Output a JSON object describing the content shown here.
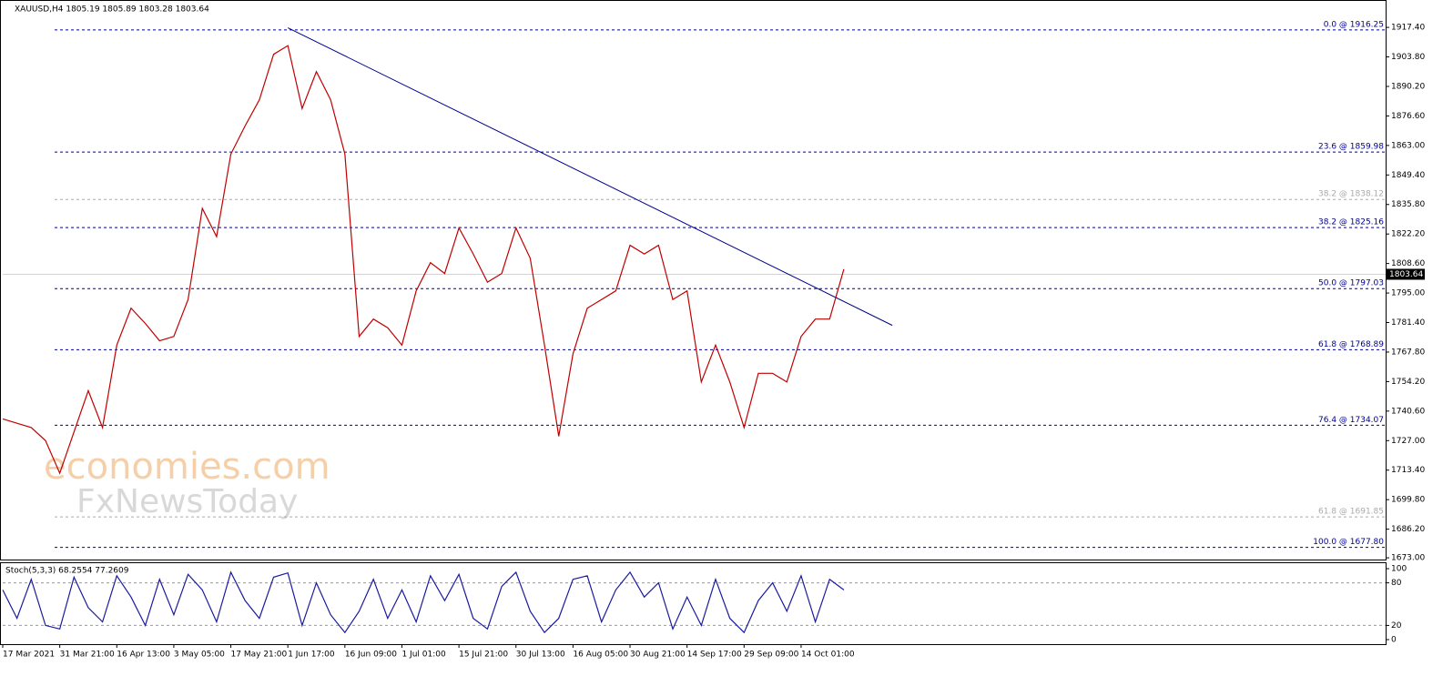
{
  "chart_data": [
    {
      "type": "line",
      "title": "XAUUSD,H4  1805.19 1805.89 1803.28 1803.64",
      "watermark": [
        "economies.com",
        "FxNewsToday"
      ],
      "color": "#c00000",
      "x": [
        0,
        1,
        2,
        3,
        4,
        5,
        6,
        7,
        8,
        9,
        10,
        11,
        12,
        13,
        14,
        15,
        16,
        17,
        18,
        19,
        20,
        21,
        22,
        23,
        24,
        25,
        26,
        27,
        28,
        29,
        30,
        31,
        32,
        33,
        34,
        35,
        36,
        37,
        38,
        39,
        40,
        41,
        42,
        43,
        44,
        45,
        46,
        47,
        48,
        49,
        50,
        51,
        52,
        53,
        54,
        55,
        56,
        57,
        58,
        59
      ],
      "values": [
        1737,
        1735,
        1733,
        1727,
        1712,
        1731,
        1750,
        1733,
        1771,
        1788,
        1781,
        1773,
        1775,
        1792,
        1834,
        1821,
        1859,
        1872,
        1884,
        1905,
        1909,
        1880,
        1897,
        1884,
        1859,
        1775,
        1783,
        1779,
        1771,
        1796,
        1809,
        1804,
        1825,
        1813,
        1800,
        1804,
        1825,
        1811,
        1771,
        1729,
        1767,
        1788,
        1792,
        1796,
        1817,
        1813,
        1817,
        1792,
        1796,
        1754,
        1771,
        1754,
        1733,
        1758,
        1758,
        1754,
        1775,
        1783,
        1783,
        1806
      ],
      "xlim": [
        0,
        97
      ],
      "ylim": [
        1672.2,
        1929.6
      ],
      "yticks": [
        {
          "value": 1917.4,
          "label": "1917.40"
        },
        {
          "value": 1903.8,
          "label": "1903.80"
        },
        {
          "value": 1890.2,
          "label": "1890.20"
        },
        {
          "value": 1876.6,
          "label": "1876.60"
        },
        {
          "value": 1863,
          "label": "1863.00"
        },
        {
          "value": 1849.4,
          "label": "1849.40"
        },
        {
          "value": 1835.8,
          "label": "1835.80"
        },
        {
          "value": 1822.2,
          "label": "1822.20"
        },
        {
          "value": 1808.6,
          "label": "1808.60"
        },
        {
          "value": 1795,
          "label": "1795.00"
        },
        {
          "value": 1781.4,
          "label": "1781.40"
        },
        {
          "value": 1767.8,
          "label": "1767.80"
        },
        {
          "value": 1754.2,
          "label": "1754.20"
        },
        {
          "value": 1740.6,
          "label": "1740.60"
        },
        {
          "value": 1727,
          "label": "1727.00"
        },
        {
          "value": 1713.4,
          "label": "1713.40"
        },
        {
          "value": 1699.8,
          "label": "1699.80"
        },
        {
          "value": 1686.2,
          "label": "1686.20"
        },
        {
          "value": 1673,
          "label": "1673.00"
        }
      ],
      "xticks": [
        {
          "value": 0,
          "label": "17 Mar 2021"
        },
        {
          "value": 4,
          "label": "31 Mar 21:00"
        },
        {
          "value": 8,
          "label": "16 Apr 13:00"
        },
        {
          "value": 12,
          "label": "3 May 05:00"
        },
        {
          "value": 16,
          "label": "17 May 21:00"
        },
        {
          "value": 20,
          "label": "1 Jun 17:00"
        },
        {
          "value": 24,
          "label": "16 Jun 09:00"
        },
        {
          "value": 28,
          "label": "1 Jul 01:00"
        },
        {
          "value": 32,
          "label": "15 Jul 21:00"
        },
        {
          "value": 36,
          "label": "30 Jul 13:00"
        },
        {
          "value": 40,
          "label": "16 Aug 05:00"
        },
        {
          "value": 44,
          "label": "30 Aug 21:00"
        },
        {
          "value": 48,
          "label": "14 Sep 17:00"
        },
        {
          "value": 52,
          "label": "29 Sep 09:00"
        },
        {
          "value": 56,
          "label": "14 Oct 01:00"
        }
      ],
      "levels": [
        {
          "label": "0.0 @ 1916.25",
          "value": 1916.25,
          "color": "#00008b"
        },
        {
          "label": "23.6 @ 1859.98",
          "value": 1859.98,
          "color": "#00008b"
        },
        {
          "label": "38.2 @ 1838.12",
          "value": 1838.12,
          "color": "#aaaaaa"
        },
        {
          "label": "38.2 @ 1825.16",
          "value": 1825.16,
          "color": "#00008b"
        },
        {
          "label": "50.0 @ 1797.03",
          "value": 1797.03,
          "color": "#00008b"
        },
        {
          "label": "61.8 @ 1768.89",
          "value": 1768.89,
          "color": "#00008b"
        },
        {
          "label": "76.4 @ 1734.07",
          "value": 1734.07,
          "color": "#00008b"
        },
        {
          "label": "61.8 @ 1691.85",
          "value": 1691.85,
          "color": "#aaaaaa"
        },
        {
          "label": "100.0 @ 1677.80",
          "value": 1677.8,
          "color": "#00008b"
        }
      ],
      "trendline": {
        "x": [
          20,
          62.4
        ],
        "values": [
          1917.2,
          1780.1
        ],
        "color": "#00008b"
      },
      "last_price": 1803.64
    },
    {
      "type": "line",
      "title": "Stoch(5,3,3) 68.2554 77.2609",
      "color": "#1a1aa0",
      "x": [
        0,
        1,
        2,
        3,
        4,
        5,
        6,
        7,
        8,
        9,
        10,
        11,
        12,
        13,
        14,
        15,
        16,
        17,
        18,
        19,
        20,
        21,
        22,
        23,
        24,
        25,
        26,
        27,
        28,
        29,
        30,
        31,
        32,
        33,
        34,
        35,
        36,
        37,
        38,
        39,
        40,
        41,
        42,
        43,
        44,
        45,
        46,
        47,
        48,
        49,
        50,
        51,
        52,
        53,
        54,
        55,
        56,
        57,
        58,
        59
      ],
      "values": [
        70,
        30,
        85,
        20,
        15,
        88,
        45,
        25,
        90,
        60,
        20,
        85,
        35,
        92,
        70,
        25,
        95,
        55,
        30,
        88,
        94,
        20,
        80,
        35,
        10,
        40,
        85,
        30,
        70,
        25,
        90,
        55,
        92,
        30,
        15,
        75,
        95,
        40,
        10,
        30,
        85,
        90,
        25,
        70,
        95,
        60,
        80,
        15,
        60,
        20,
        85,
        30,
        10,
        55,
        80,
        40,
        90,
        25,
        85,
        70
      ],
      "xlim": [
        0,
        97
      ],
      "ylim": [
        -6.4,
        109
      ],
      "yticks": [
        0,
        20,
        80,
        100
      ],
      "levels": [
        80,
        20
      ]
    }
  ]
}
